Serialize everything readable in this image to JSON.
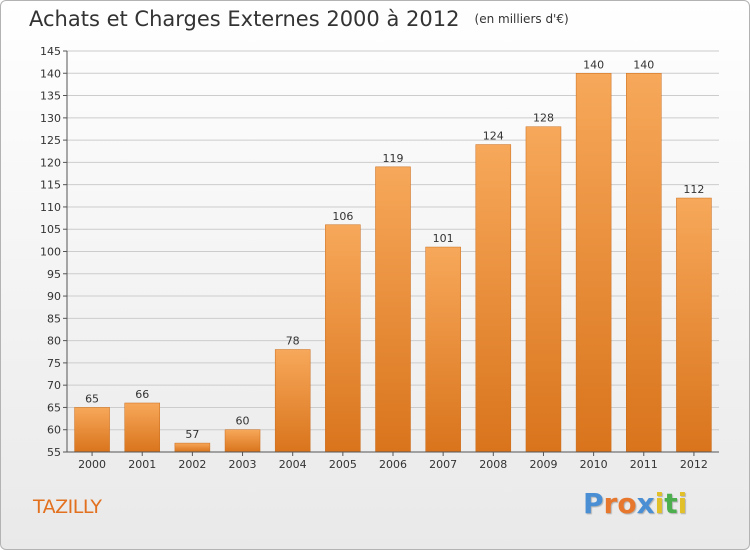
{
  "title": "Achats et Charges Externes 2000 à 2012",
  "unit": "(en milliers d'€)",
  "commune": "TAZILLY",
  "brand": {
    "text": "Proxiti",
    "letters": [
      "P",
      "r",
      "o",
      "x",
      "i",
      "t",
      "i"
    ],
    "colors": [
      "#4a8fd4",
      "#e8772e",
      "#e8772e",
      "#4a8fd4",
      "#e2c02a",
      "#4cae4c",
      "#e2c02a"
    ]
  },
  "colors": {
    "bar_light": "#f7a85a",
    "bar_dark": "#d9741c",
    "title": "#333333",
    "commune": "#e2701e",
    "axis": "#555555",
    "grid": "#cccccc"
  },
  "chart_data": {
    "type": "bar",
    "categories": [
      "2000",
      "2001",
      "2002",
      "2003",
      "2004",
      "2005",
      "2006",
      "2007",
      "2008",
      "2009",
      "2010",
      "2011",
      "2012"
    ],
    "values": [
      65,
      66,
      57,
      60,
      78,
      106,
      119,
      101,
      124,
      128,
      140,
      140,
      112
    ],
    "data_labels": [
      "65",
      "66",
      "57",
      "60",
      "78",
      "106",
      "119",
      "101",
      "124",
      "128",
      "140",
      "140",
      "112"
    ],
    "ylim": [
      55,
      145
    ],
    "ytick_labels": [
      "55",
      "60",
      "65",
      "70",
      "75",
      "80",
      "85",
      "90",
      "95",
      "100",
      "105",
      "110",
      "115",
      "120",
      "125",
      "130",
      "135",
      "140",
      "145"
    ],
    "grid": true,
    "legend": "none"
  }
}
